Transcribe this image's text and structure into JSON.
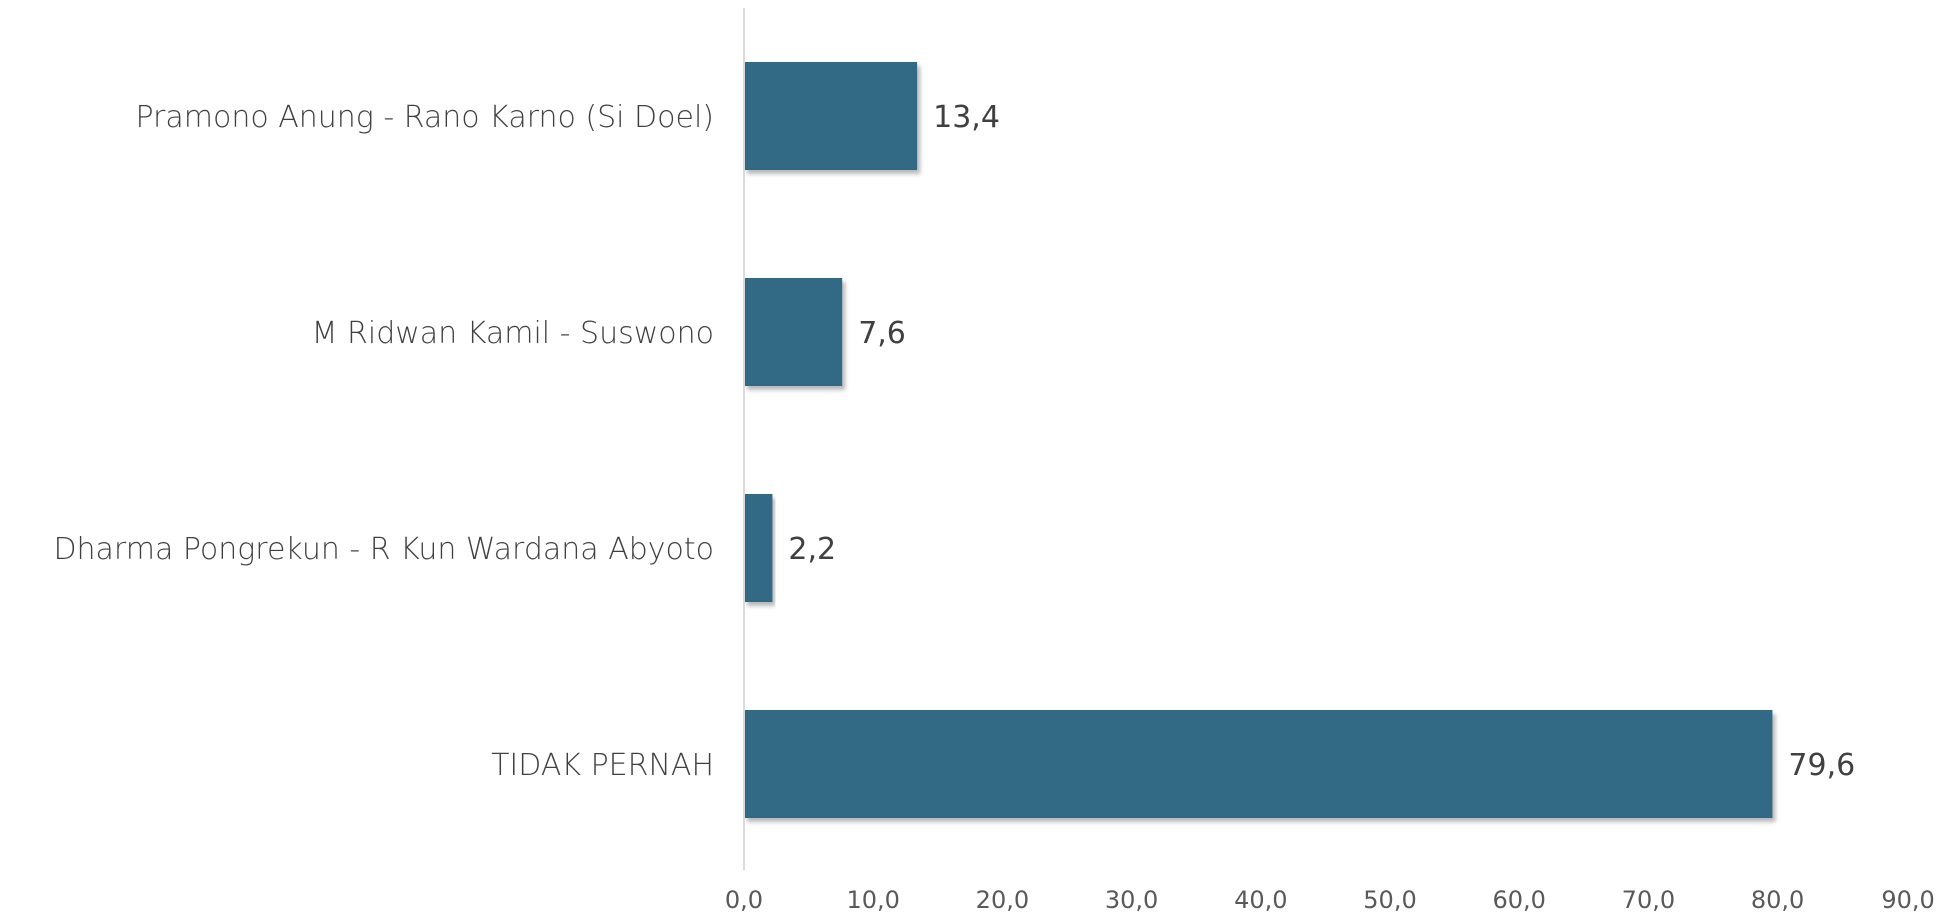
{
  "chart_data": {
    "type": "bar",
    "orientation": "horizontal",
    "title": "",
    "xlabel": "",
    "ylabel": "",
    "categories": [
      "Pramono Anung - Rano Karno  (Si Doel)",
      "M Ridwan Kamil - Suswono",
      "Dharma Pongrekun - R Kun Wardana Abyoto",
      "TIDAK PERNAH"
    ],
    "values": [
      13.4,
      7.6,
      2.2,
      79.6
    ],
    "value_labels": [
      "13,4",
      "7,6",
      "2,2",
      "79,6"
    ],
    "xlim": [
      0,
      90
    ],
    "ticks": [
      0,
      10,
      20,
      30,
      40,
      50,
      60,
      70,
      80,
      90
    ],
    "tick_labels": [
      "0,0",
      "10,0",
      "20,0",
      "30,0",
      "40,0",
      "50,0",
      "60,0",
      "70,0",
      "80,0",
      "90,0"
    ],
    "bar_color": "#336985",
    "grid": false,
    "legend": "none"
  }
}
